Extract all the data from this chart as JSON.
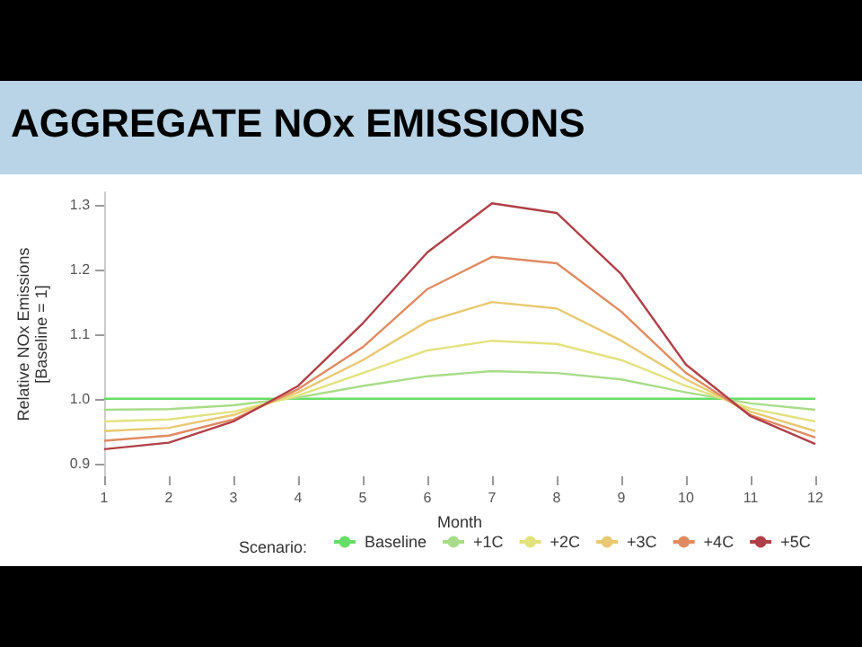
{
  "chart_data": {
    "type": "line",
    "title": "AGGREGATE NOx EMISSIONS",
    "xlabel": "Month",
    "ylabel": "Relative NOx Emissions\n[Baseline = 1]",
    "legend_title": "Scenario:",
    "x": [
      1,
      2,
      3,
      4,
      5,
      6,
      7,
      8,
      9,
      10,
      11,
      12
    ],
    "series": [
      {
        "name": "Baseline",
        "color": "#66dd66",
        "values": [
          1.0,
          1.0,
          1.0,
          1.0,
          1.0,
          1.0,
          1.0,
          1.0,
          1.0,
          1.0,
          1.0,
          1.0
        ]
      },
      {
        "name": "+1C",
        "color": "#a8dc88",
        "values": [
          0.983,
          0.984,
          0.99,
          1.002,
          1.02,
          1.035,
          1.043,
          1.04,
          1.03,
          1.01,
          0.993,
          0.983
        ]
      },
      {
        "name": "+2C",
        "color": "#e2e27e",
        "values": [
          0.965,
          0.968,
          0.98,
          1.005,
          1.04,
          1.075,
          1.09,
          1.085,
          1.06,
          1.02,
          0.985,
          0.965
        ]
      },
      {
        "name": "+3C",
        "color": "#e8c870",
        "values": [
          0.95,
          0.955,
          0.975,
          1.01,
          1.06,
          1.12,
          1.15,
          1.14,
          1.09,
          1.03,
          0.98,
          0.95
        ]
      },
      {
        "name": "+4C",
        "color": "#e08a60",
        "values": [
          0.935,
          0.943,
          0.968,
          1.015,
          1.08,
          1.17,
          1.22,
          1.21,
          1.135,
          1.04,
          0.975,
          0.94
        ]
      },
      {
        "name": "+5C",
        "color": "#b04048",
        "values": [
          0.922,
          0.932,
          0.965,
          1.02,
          1.117,
          1.227,
          1.303,
          1.288,
          1.193,
          1.053,
          0.973,
          0.93
        ]
      }
    ],
    "xlim": [
      1,
      12
    ],
    "xticks": [
      1,
      2,
      3,
      4,
      5,
      6,
      7,
      8,
      9,
      10,
      11,
      12
    ],
    "ylim": [
      0.88,
      1.32
    ],
    "yticks": [
      {
        "value": 0.9,
        "label": "0.9"
      },
      {
        "value": 1,
        "label": "1.0"
      },
      {
        "value": 1.1,
        "label": "1.1"
      },
      {
        "value": 1.2,
        "label": "1.2"
      },
      {
        "value": 1.3,
        "label": "1.3"
      }
    ],
    "grid": false,
    "legend": "bottom",
    "marker": "none",
    "line_style": "solid"
  }
}
